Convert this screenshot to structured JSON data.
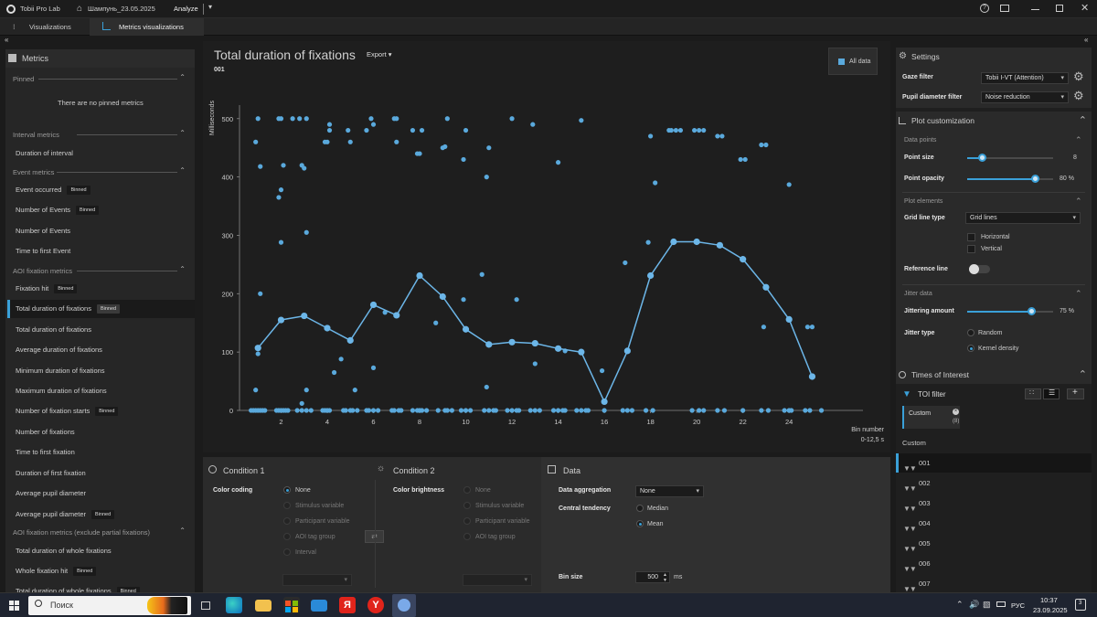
{
  "titlebar": {
    "app_name": "Tobii Pro Lab",
    "project": "Шампунь_23.05.2025",
    "mode": "Analyze"
  },
  "tabs": [
    {
      "label": "Visualizations"
    },
    {
      "label": "Metrics visualizations"
    }
  ],
  "left_panel": {
    "title": "Metrics",
    "pinned_header": "Pinned",
    "pinned_empty": "There are no pinned metrics",
    "binned_label": "Binned",
    "groups": [
      {
        "label": "Interval metrics",
        "items": [
          {
            "label": "Duration of interval",
            "binned": false
          }
        ]
      },
      {
        "label": "Event metrics",
        "items": [
          {
            "label": "Event occurred",
            "binned": true
          },
          {
            "label": "Number of Events",
            "binned": true
          },
          {
            "label": "Number of Events",
            "binned": false
          },
          {
            "label": "Time to first Event",
            "binned": false
          }
        ]
      },
      {
        "label": "AOI fixation metrics",
        "items": [
          {
            "label": "Fixation hit",
            "binned": true
          },
          {
            "label": "Total duration of fixations",
            "binned": true,
            "selected": true
          },
          {
            "label": "Total duration of fixations",
            "binned": false
          },
          {
            "label": "Average duration of fixations",
            "binned": false
          },
          {
            "label": "Minimum duration of fixations",
            "binned": false
          },
          {
            "label": "Maximum duration of fixations",
            "binned": false
          },
          {
            "label": "Number of fixation starts",
            "binned": true
          },
          {
            "label": "Number of fixations",
            "binned": false
          },
          {
            "label": "Time to first fixation",
            "binned": false
          },
          {
            "label": "Duration of first fixation",
            "binned": false
          },
          {
            "label": "Average pupil diameter",
            "binned": false
          },
          {
            "label": "Average pupil diameter",
            "binned": true
          }
        ]
      },
      {
        "label": "AOI fixation metrics (exclude partial fixations)",
        "items": [
          {
            "label": "Total duration of whole fixations",
            "binned": false
          },
          {
            "label": "Whole fixation hit",
            "binned": true
          },
          {
            "label": "Total duration of whole fixations",
            "binned": true
          }
        ]
      }
    ]
  },
  "chart_header": {
    "title": "Total duration of fixations",
    "export_label": "Export",
    "subtitle": "001",
    "legend_label": "All data"
  },
  "chart_data": {
    "type": "scatter",
    "ylabel": "Milliseconds",
    "xlabel": "Bin number",
    "xlabel_sub": "0-12,5 s",
    "xlim": [
      0.2,
      27.2
    ],
    "ylim": [
      0,
      520
    ],
    "x_ticks": [
      2,
      4,
      6,
      8,
      10,
      12,
      14,
      16,
      18,
      20,
      22,
      24
    ],
    "y_ticks": [
      0,
      100,
      200,
      300,
      400,
      500
    ],
    "grid": "off",
    "colors": {
      "points": "#5aa9dc",
      "mean_line": "#6cb6e8"
    },
    "mean_series": {
      "name": "Mean",
      "x": [
        1,
        2,
        3,
        4,
        5,
        6,
        7,
        8,
        9,
        10,
        11,
        12,
        13,
        14,
        15,
        16,
        17,
        18,
        19,
        20,
        21,
        22,
        23,
        24,
        25
      ],
      "y": [
        107,
        155,
        162,
        141,
        120,
        181,
        163,
        231,
        195,
        139,
        113,
        117,
        115,
        106,
        100,
        15,
        102,
        231,
        289,
        289,
        283,
        259,
        211,
        156,
        58
      ]
    },
    "points": [
      {
        "x": 0.9,
        "y": 460
      },
      {
        "x": 1.0,
        "y": 500
      },
      {
        "x": 1.1,
        "y": 418
      },
      {
        "x": 1.1,
        "y": 200
      },
      {
        "x": 1.0,
        "y": 97
      },
      {
        "x": 0.9,
        "y": 35
      },
      {
        "x": 0.7,
        "y": 0
      },
      {
        "x": 0.8,
        "y": 0
      },
      {
        "x": 0.9,
        "y": 0
      },
      {
        "x": 1.0,
        "y": 0
      },
      {
        "x": 1.1,
        "y": 0
      },
      {
        "x": 1.2,
        "y": 0
      },
      {
        "x": 1.3,
        "y": 0
      },
      {
        "x": 1.9,
        "y": 500
      },
      {
        "x": 2.0,
        "y": 500
      },
      {
        "x": 2.1,
        "y": 420
      },
      {
        "x": 1.9,
        "y": 365
      },
      {
        "x": 2.0,
        "y": 378
      },
      {
        "x": 2.0,
        "y": 288
      },
      {
        "x": 1.8,
        "y": 0
      },
      {
        "x": 1.9,
        "y": 0
      },
      {
        "x": 2.0,
        "y": 0
      },
      {
        "x": 2.1,
        "y": 0
      },
      {
        "x": 2.2,
        "y": 0
      },
      {
        "x": 2.3,
        "y": 0
      },
      {
        "x": 2.5,
        "y": 500
      },
      {
        "x": 2.8,
        "y": 500
      },
      {
        "x": 2.9,
        "y": 420
      },
      {
        "x": 3.0,
        "y": 415
      },
      {
        "x": 3.1,
        "y": 500
      },
      {
        "x": 3.1,
        "y": 305
      },
      {
        "x": 3.1,
        "y": 35
      },
      {
        "x": 2.9,
        "y": 12
      },
      {
        "x": 2.7,
        "y": 0
      },
      {
        "x": 2.9,
        "y": 0
      },
      {
        "x": 3.1,
        "y": 0
      },
      {
        "x": 3.3,
        "y": 0
      },
      {
        "x": 3.9,
        "y": 460
      },
      {
        "x": 4.1,
        "y": 490
      },
      {
        "x": 4.1,
        "y": 480
      },
      {
        "x": 4.0,
        "y": 460
      },
      {
        "x": 4.3,
        "y": 65
      },
      {
        "x": 3.8,
        "y": 0
      },
      {
        "x": 3.9,
        "y": 0
      },
      {
        "x": 4.0,
        "y": 0
      },
      {
        "x": 4.1,
        "y": 0
      },
      {
        "x": 4.9,
        "y": 480
      },
      {
        "x": 5.0,
        "y": 460
      },
      {
        "x": 4.6,
        "y": 88
      },
      {
        "x": 5.2,
        "y": 35
      },
      {
        "x": 4.7,
        "y": 0
      },
      {
        "x": 4.8,
        "y": 0
      },
      {
        "x": 5.0,
        "y": 0
      },
      {
        "x": 5.1,
        "y": 0
      },
      {
        "x": 5.3,
        "y": 0
      },
      {
        "x": 5.7,
        "y": 480
      },
      {
        "x": 5.9,
        "y": 500
      },
      {
        "x": 6.0,
        "y": 490
      },
      {
        "x": 6.0,
        "y": 73
      },
      {
        "x": 6.5,
        "y": 168
      },
      {
        "x": 5.7,
        "y": 0
      },
      {
        "x": 5.8,
        "y": 0
      },
      {
        "x": 6.0,
        "y": 0
      },
      {
        "x": 6.2,
        "y": 0
      },
      {
        "x": 6.9,
        "y": 500
      },
      {
        "x": 7.0,
        "y": 500
      },
      {
        "x": 7.0,
        "y": 460
      },
      {
        "x": 6.8,
        "y": 0
      },
      {
        "x": 6.9,
        "y": 0
      },
      {
        "x": 7.1,
        "y": 0
      },
      {
        "x": 7.2,
        "y": 0
      },
      {
        "x": 7.7,
        "y": 480
      },
      {
        "x": 7.9,
        "y": 440
      },
      {
        "x": 8.0,
        "y": 440
      },
      {
        "x": 8.1,
        "y": 480
      },
      {
        "x": 8.7,
        "y": 150
      },
      {
        "x": 7.7,
        "y": 0
      },
      {
        "x": 7.9,
        "y": 0
      },
      {
        "x": 8.0,
        "y": 0
      },
      {
        "x": 8.1,
        "y": 0
      },
      {
        "x": 8.3,
        "y": 0
      },
      {
        "x": 9.0,
        "y": 450
      },
      {
        "x": 9.1,
        "y": 452
      },
      {
        "x": 9.2,
        "y": 500
      },
      {
        "x": 8.8,
        "y": 0
      },
      {
        "x": 9.1,
        "y": 0
      },
      {
        "x": 9.2,
        "y": 0
      },
      {
        "x": 9.4,
        "y": 0
      },
      {
        "x": 9.9,
        "y": 430
      },
      {
        "x": 10.0,
        "y": 480
      },
      {
        "x": 9.9,
        "y": 190
      },
      {
        "x": 9.8,
        "y": 0
      },
      {
        "x": 10.0,
        "y": 0
      },
      {
        "x": 10.2,
        "y": 0
      },
      {
        "x": 10.9,
        "y": 400
      },
      {
        "x": 11.0,
        "y": 450
      },
      {
        "x": 10.9,
        "y": 40
      },
      {
        "x": 10.7,
        "y": 233
      },
      {
        "x": 10.8,
        "y": 0
      },
      {
        "x": 11.0,
        "y": 0
      },
      {
        "x": 11.2,
        "y": 0
      },
      {
        "x": 11.3,
        "y": 0
      },
      {
        "x": 12.0,
        "y": 500
      },
      {
        "x": 12.2,
        "y": 190
      },
      {
        "x": 11.8,
        "y": 0
      },
      {
        "x": 12.0,
        "y": 0
      },
      {
        "x": 12.2,
        "y": 0
      },
      {
        "x": 12.3,
        "y": 0
      },
      {
        "x": 12.9,
        "y": 490
      },
      {
        "x": 13.0,
        "y": 80
      },
      {
        "x": 12.8,
        "y": 0
      },
      {
        "x": 13.0,
        "y": 0
      },
      {
        "x": 13.2,
        "y": 0
      },
      {
        "x": 14.0,
        "y": 425
      },
      {
        "x": 14.3,
        "y": 102
      },
      {
        "x": 13.8,
        "y": 0
      },
      {
        "x": 14.0,
        "y": 0
      },
      {
        "x": 14.2,
        "y": 0
      },
      {
        "x": 14.3,
        "y": 0
      },
      {
        "x": 15.0,
        "y": 497
      },
      {
        "x": 14.8,
        "y": 0
      },
      {
        "x": 15.0,
        "y": 0
      },
      {
        "x": 15.2,
        "y": 0
      },
      {
        "x": 15.3,
        "y": 0
      },
      {
        "x": 15.9,
        "y": 68
      },
      {
        "x": 16.0,
        "y": 0
      },
      {
        "x": 16.9,
        "y": 253
      },
      {
        "x": 16.8,
        "y": 0
      },
      {
        "x": 17.0,
        "y": 0
      },
      {
        "x": 17.2,
        "y": 0
      },
      {
        "x": 18.0,
        "y": 470
      },
      {
        "x": 18.2,
        "y": 390
      },
      {
        "x": 17.9,
        "y": 288
      },
      {
        "x": 17.8,
        "y": 0
      },
      {
        "x": 18.1,
        "y": 0
      },
      {
        "x": 18.8,
        "y": 480
      },
      {
        "x": 18.9,
        "y": 480
      },
      {
        "x": 19.1,
        "y": 480
      },
      {
        "x": 19.3,
        "y": 480
      },
      {
        "x": 19.9,
        "y": 480
      },
      {
        "x": 20.1,
        "y": 480
      },
      {
        "x": 20.3,
        "y": 480
      },
      {
        "x": 19.8,
        "y": 0
      },
      {
        "x": 20.1,
        "y": 0
      },
      {
        "x": 20.3,
        "y": 0
      },
      {
        "x": 20.9,
        "y": 470
      },
      {
        "x": 21.1,
        "y": 470
      },
      {
        "x": 20.9,
        "y": 0
      },
      {
        "x": 21.2,
        "y": 0
      },
      {
        "x": 21.9,
        "y": 430
      },
      {
        "x": 22.1,
        "y": 430
      },
      {
        "x": 22.0,
        "y": 0
      },
      {
        "x": 22.8,
        "y": 455
      },
      {
        "x": 23.0,
        "y": 455
      },
      {
        "x": 22.9,
        "y": 143
      },
      {
        "x": 22.8,
        "y": 0
      },
      {
        "x": 23.1,
        "y": 0
      },
      {
        "x": 24.0,
        "y": 387
      },
      {
        "x": 23.8,
        "y": 0
      },
      {
        "x": 24.0,
        "y": 0
      },
      {
        "x": 24.1,
        "y": 0
      },
      {
        "x": 24.8,
        "y": 143
      },
      {
        "x": 25.0,
        "y": 143
      },
      {
        "x": 24.7,
        "y": 0
      },
      {
        "x": 24.9,
        "y": 0
      },
      {
        "x": 25.4,
        "y": 0
      }
    ]
  },
  "condition1": {
    "title": "Condition 1",
    "color_coding_label": "Color coding",
    "options": [
      "None",
      "Stimulus variable",
      "Participant variable",
      "AOI tag group",
      "Interval"
    ]
  },
  "condition2": {
    "title": "Condition 2",
    "color_brightness_label": "Color brightness",
    "options": [
      "None",
      "Stimulus variable",
      "Participant variable",
      "AOI tag group"
    ]
  },
  "data_section": {
    "title": "Data",
    "aggregation_label": "Data aggregation",
    "aggregation_value": "None",
    "central_tendency_label": "Central tendency",
    "median_label": "Median",
    "mean_label": "Mean",
    "bin_size_label": "Bin size",
    "bin_size_value": "500",
    "bin_size_unit": "ms"
  },
  "settings": {
    "title": "Settings",
    "gaze_filter_label": "Gaze filter",
    "gaze_filter_value": "Tobii I-VT (Attention)",
    "pupil_filter_label": "Pupil diameter filter",
    "pupil_filter_value": "Noise reduction"
  },
  "plot_customization": {
    "title": "Plot customization",
    "data_points_header": "Data points",
    "point_size_label": "Point size",
    "point_size_value": "8",
    "point_size_fraction": 0.18,
    "point_opacity_label": "Point opacity",
    "point_opacity_value": "80",
    "point_opacity_unit": "%",
    "point_opacity_fraction": 0.8,
    "plot_elements_header": "Plot elements",
    "grid_line_type_label": "Grid line type",
    "grid_line_type_value": "Grid lines",
    "horizontal_label": "Horizontal",
    "vertical_label": "Vertical",
    "reference_line_label": "Reference line",
    "jitter_header": "Jitter data",
    "jitter_amount_label": "Jittering amount",
    "jitter_amount_value": "75",
    "jitter_amount_unit": "%",
    "jitter_amount_fraction": 0.75,
    "jitter_type_label": "Jitter type",
    "random_label": "Random",
    "kernel_label": "Kernel density"
  },
  "toi": {
    "title": "Times of Interest",
    "filter_label": "TOI filter",
    "chip_label": "Custom",
    "chip_count": "(8)",
    "group_label": "Custom",
    "items": [
      "001",
      "002",
      "003",
      "004",
      "005",
      "006",
      "007"
    ]
  },
  "taskbar": {
    "search_placeholder": "Поиск",
    "language": "РУС",
    "time": "10:37",
    "date": "23.09.2025",
    "notif_count": "3"
  }
}
